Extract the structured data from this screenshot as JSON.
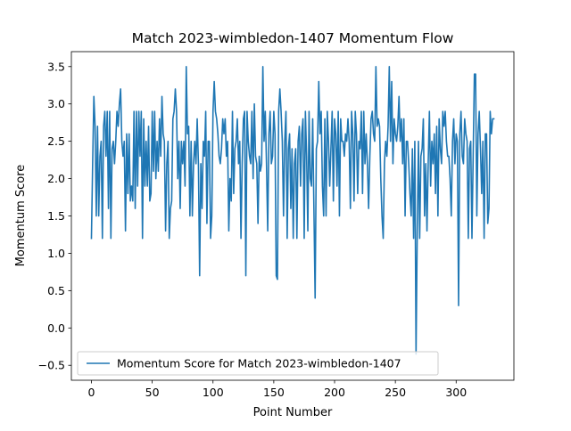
{
  "chart_data": {
    "type": "line",
    "title": "Match 2023-wimbledon-1407 Momentum Flow",
    "xlabel": "Point Number",
    "ylabel": "Momentum Score",
    "xlim": [
      -16.5,
      347.5
    ],
    "ylim": [
      -0.7,
      3.7
    ],
    "xticks": [
      0,
      50,
      100,
      150,
      200,
      250,
      300
    ],
    "yticks": [
      -0.5,
      0.0,
      0.5,
      1.0,
      1.5,
      2.0,
      2.5,
      3.0,
      3.5
    ],
    "ytick_labels": [
      "−0.5",
      "0.0",
      "0.5",
      "1.0",
      "1.5",
      "2.0",
      "2.5",
      "3.0",
      "3.5"
    ],
    "grid": false,
    "legend_position": "lower-left",
    "color": "#1f77b4",
    "series": [
      {
        "name": "Momentum Score for Match 2023-wimbledon-1407",
        "values": [
          1.2,
          2.2,
          3.1,
          2.7,
          1.5,
          2.7,
          1.5,
          2.3,
          2.5,
          1.2,
          2.7,
          2.9,
          2.3,
          2.9,
          1.6,
          2.9,
          1.2,
          2.4,
          2.5,
          2.2,
          2.5,
          2.9,
          2.7,
          3.0,
          3.2,
          2.5,
          2.3,
          2.5,
          1.3,
          2.6,
          1.8,
          2.6,
          1.7,
          1.9,
          1.7,
          2.9,
          1.6,
          2.9,
          1.9,
          2.9,
          2.3,
          2.9,
          1.2,
          2.8,
          1.9,
          2.5,
          1.9,
          2.7,
          1.7,
          1.8,
          2.9,
          2.1,
          2.9,
          2.0,
          2.5,
          2.1,
          2.8,
          2.3,
          3.1,
          2.6,
          2.5,
          1.3,
          2.2,
          2.5,
          1.2,
          1.6,
          1.7,
          2.8,
          2.9,
          3.2,
          2.9,
          2.0,
          2.5,
          1.6,
          2.5,
          2.2,
          2.5,
          1.9,
          3.5,
          2.6,
          2.7,
          1.5,
          2.5,
          1.5,
          2.2,
          2.5,
          2.2,
          2.8,
          2.2,
          0.7,
          2.2,
          1.6,
          2.5,
          2.3,
          2.9,
          1.4,
          2.5,
          2.5,
          1.2,
          1.5,
          2.9,
          3.3,
          2.9,
          2.8,
          2.6,
          2.3,
          2.2,
          2.4,
          2.8,
          2.6,
          2.8,
          2.3,
          2.5,
          1.3,
          2.0,
          1.7,
          2.9,
          1.8,
          2.4,
          2.5,
          2.8,
          2.2,
          2.5,
          1.2,
          2.2,
          2.8,
          2.9,
          0.7,
          2.9,
          2.5,
          2.3,
          2.2,
          2.9,
          2.0,
          3.0,
          2.3,
          2.2,
          1.4,
          2.3,
          2.1,
          2.2,
          3.5,
          2.5,
          2.9,
          2.2,
          1.3,
          2.6,
          2.9,
          2.2,
          2.3,
          2.9,
          2.6,
          0.7,
          0.65,
          2.9,
          3.2,
          2.9,
          2.5,
          1.5,
          2.5,
          2.9,
          1.2,
          2.4,
          2.6,
          1.6,
          2.4,
          1.2,
          2.2,
          2.4,
          1.2,
          2.5,
          2.7,
          1.9,
          2.6,
          2.8,
          1.2,
          2.9,
          2.3,
          1.3,
          2.9,
          2.0,
          1.9,
          2.8,
          1.6,
          0.4,
          2.4,
          2.5,
          3.3,
          2.6,
          2.9,
          1.9,
          1.5,
          2.8,
          1.5,
          2.9,
          2.5,
          1.9,
          2.4,
          2.9,
          1.7,
          2.8,
          2.6,
          1.9,
          2.9,
          1.5,
          2.8,
          2.5,
          2.5,
          2.3,
          2.6,
          2.5,
          2.8,
          2.5,
          1.6,
          2.9,
          2.6,
          1.7,
          2.9,
          2.6,
          1.8,
          2.5,
          2.4,
          2.9,
          1.8,
          2.9,
          2.2,
          2.6,
          2.2,
          1.6,
          2.3,
          2.8,
          2.9,
          2.6,
          2.5,
          3.5,
          2.7,
          2.8,
          2.7,
          2.0,
          1.5,
          1.2,
          2.2,
          2.5,
          2.3,
          2.7,
          3.5,
          2.5,
          3.3,
          2.2,
          2.8,
          2.6,
          2.5,
          2.7,
          3.1,
          2.5,
          2.8,
          2.2,
          2.8,
          1.5,
          2.5,
          2.5,
          2.2,
          1.8,
          1.5,
          2.4,
          1.2,
          2.5,
          -0.35,
          1.3,
          2.5,
          1.2,
          2.3,
          2.4,
          2.8,
          1.5,
          2.2,
          1.3,
          2.2,
          2.9,
          1.9,
          2.5,
          2.2,
          2.6,
          1.8,
          2.7,
          1.5,
          2.8,
          2.4,
          2.2,
          2.9,
          2.7,
          2.9,
          2.5,
          2.3,
          2.3,
          2.0,
          1.5,
          2.5,
          2.8,
          2.2,
          2.6,
          2.5,
          0.3,
          2.6,
          2.9,
          2.3,
          2.2,
          2.8,
          2.6,
          2.5,
          1.2,
          2.4,
          2.5,
          1.2,
          2.3,
          3.4,
          3.4,
          1.5,
          2.6,
          2.9,
          2.4,
          1.8,
          2.5,
          1.2,
          2.6,
          2.6,
          1.4,
          1.6,
          2.9,
          2.6,
          2.8,
          2.8
        ]
      }
    ]
  }
}
